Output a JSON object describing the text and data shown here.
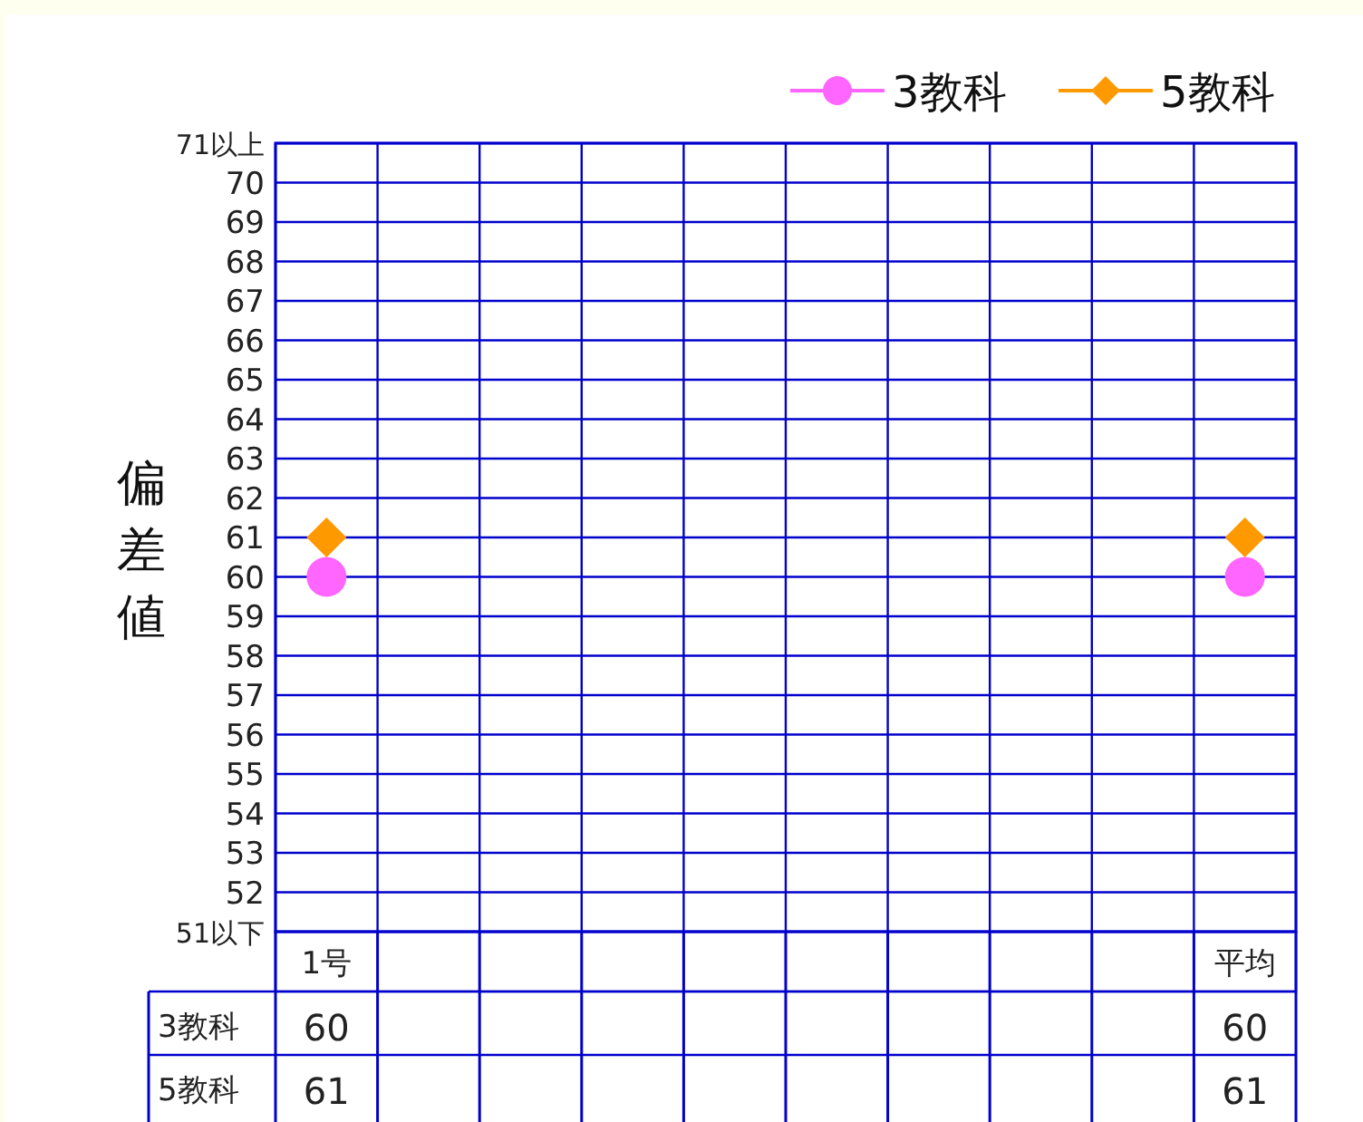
{
  "chart_data": {
    "type": "scatter",
    "ylabel": "偏差値",
    "categories": [
      "1号",
      null,
      null,
      null,
      null,
      null,
      null,
      null,
      null,
      "平均"
    ],
    "series": [
      {
        "name": "3教科",
        "color": "#ff66ff",
        "marker": "circle",
        "values": [
          60,
          null,
          null,
          null,
          null,
          null,
          null,
          null,
          null,
          60
        ]
      },
      {
        "name": "5教科",
        "color": "#ff9900",
        "marker": "diamond",
        "values": [
          61,
          null,
          null,
          null,
          null,
          null,
          null,
          null,
          null,
          61
        ]
      }
    ],
    "ylim": [
      51,
      71
    ],
    "yticks": [
      {
        "value": 51,
        "label": "51以下"
      },
      52,
      53,
      54,
      55,
      56,
      57,
      58,
      59,
      60,
      61,
      62,
      63,
      64,
      65,
      66,
      67,
      68,
      69,
      70,
      {
        "value": 71,
        "label": "71以上"
      }
    ],
    "grid": true,
    "legend": "top right",
    "data_labels": true
  }
}
